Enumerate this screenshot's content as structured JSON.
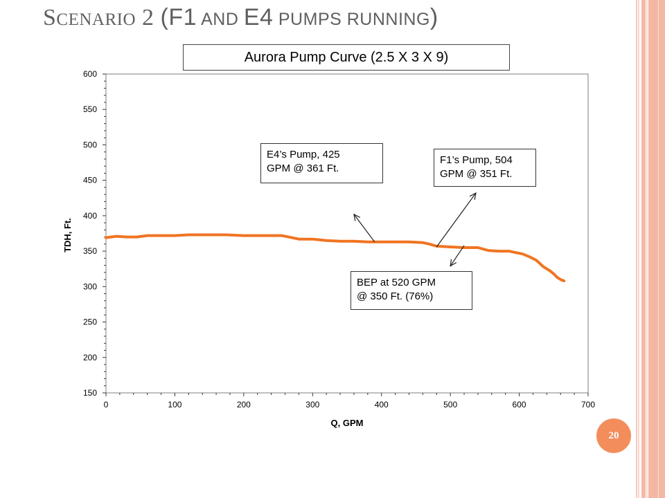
{
  "slide": {
    "title_first_letter": "S",
    "title_rest_word": "cenario",
    "title_number": " 2 ",
    "title_paren_open": "(",
    "title_f1": "F1",
    "title_and": " and ",
    "title_e4": "E4",
    "title_pumps_running": " pumps running",
    "title_paren_close": ")",
    "page_number": "20"
  },
  "colors": {
    "curve": "#f07422",
    "accent": "#f38d5c",
    "stripes": "#f3b7a3"
  },
  "chart_data": {
    "type": "line",
    "title": "Aurora Pump Curve (2.5 X 3 X 9)",
    "xlabel": "Q, GPM",
    "ylabel": "TDH, Ft.",
    "xlim": [
      0,
      700
    ],
    "ylim": [
      150,
      600
    ],
    "xticks": [
      0,
      100,
      200,
      300,
      400,
      500,
      600,
      700
    ],
    "yticks": [
      150,
      200,
      250,
      300,
      350,
      400,
      450,
      500,
      550,
      600
    ],
    "grid": false,
    "series": [
      {
        "x": [
          0,
          15,
          30,
          45,
          60,
          80,
          100,
          120,
          140,
          160,
          175,
          200,
          220,
          240,
          255,
          265,
          280,
          300,
          320,
          340,
          360,
          380,
          400,
          420,
          440,
          460,
          470,
          480,
          500,
          520,
          540,
          555,
          570,
          585,
          595,
          605,
          615,
          625,
          635,
          645,
          650,
          655,
          660,
          665
        ],
        "y": [
          369,
          371,
          370,
          370,
          372,
          372,
          372,
          373,
          373,
          373,
          373,
          372,
          372,
          372,
          372,
          370,
          367,
          367,
          365,
          364,
          364,
          363,
          363,
          363,
          363,
          362,
          360,
          357,
          356,
          355,
          355,
          351,
          350,
          350,
          348,
          346,
          342,
          337,
          328,
          322,
          318,
          313,
          310,
          308
        ]
      }
    ],
    "annotations": [
      {
        "text": "E4’s Pump, 425 GPM @ 361 Ft.",
        "line1": "E4’s Pump, 425",
        "line2": "GPM @ 361 Ft.",
        "x": 390,
        "y": 363,
        "arrow_to": [
          360,
          402
        ]
      },
      {
        "text": "F1’s Pump, 504 GPM @ 351 Ft.",
        "line1": "F1’s Pump, 504",
        "line2": "GPM @ 351 Ft.",
        "x": 480,
        "y": 356,
        "arrow_to": [
          537,
          432
        ]
      },
      {
        "text": "BEP at 520 GPM @ 350 Ft. (76%)",
        "line1": "BEP at 520 GPM",
        "line2": "@ 350 Ft. (76%)",
        "x": 520,
        "y": 358,
        "arrow_to": [
          500,
          329
        ]
      }
    ]
  }
}
